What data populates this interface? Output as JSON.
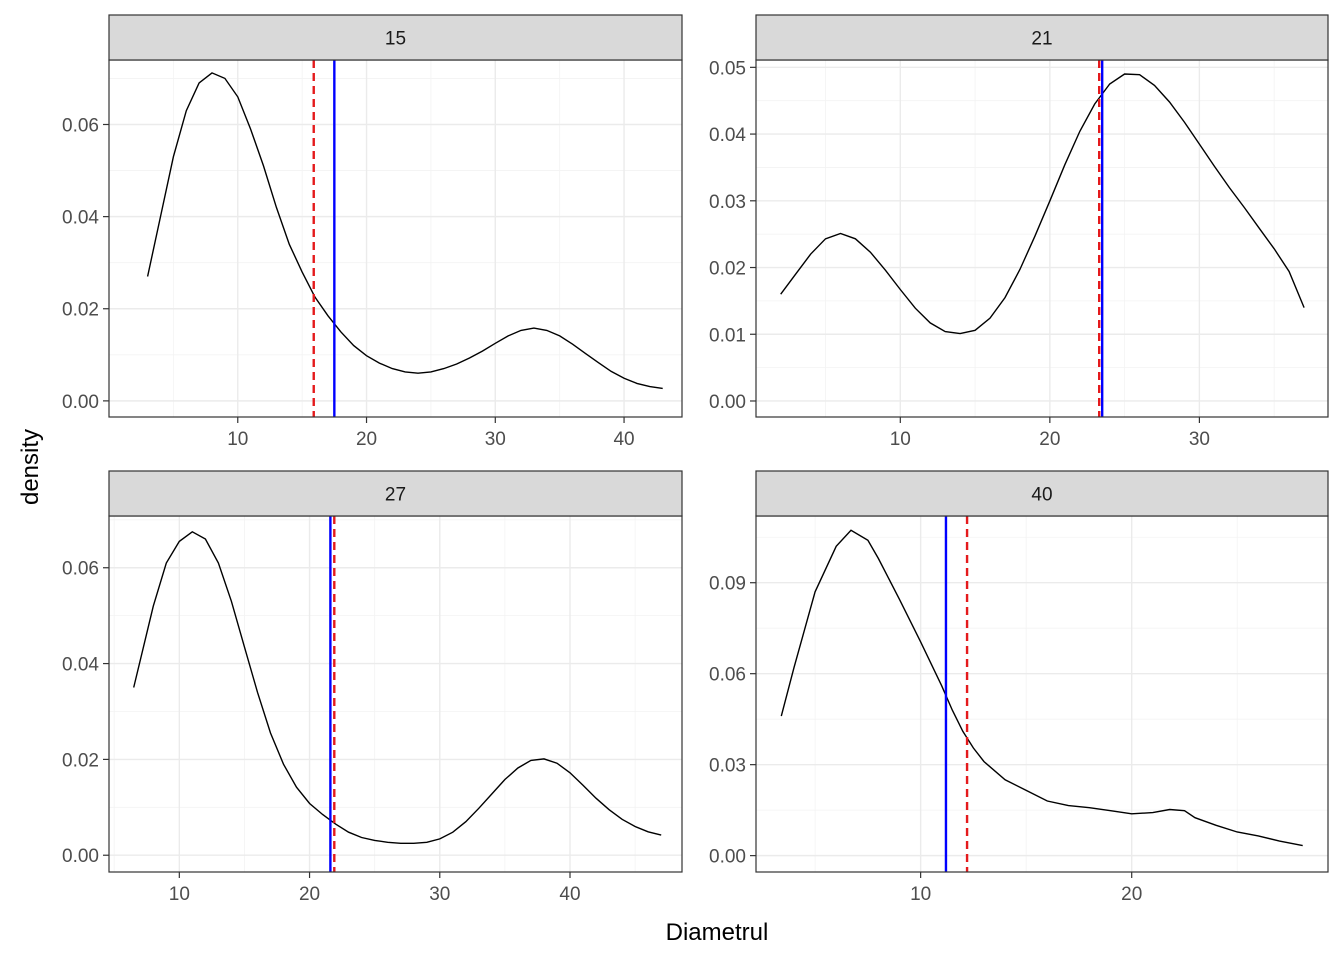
{
  "chart_data": {
    "type": "line",
    "xlabel": "Diametrul",
    "ylabel": "density",
    "colors": {
      "solid_line": "#0000ff",
      "dashed_line": "#e41a1c",
      "curve": "#000000"
    },
    "panels": [
      {
        "strip": "15",
        "xlim": [
          0,
          44.5
        ],
        "ylim": [
          -0.0035,
          0.074
        ],
        "xticks": [
          10,
          20,
          30,
          40
        ],
        "xtick_labels": [
          "10",
          "20",
          "30",
          "40"
        ],
        "yticks": [
          0,
          0.02,
          0.04,
          0.06
        ],
        "ytick_labels": [
          "0.00",
          "0.02",
          "0.04",
          "0.06"
        ],
        "vline_solid": 17.5,
        "vline_dashed": 15.9,
        "curve": {
          "x": [
            3,
            4,
            5,
            6,
            7,
            8,
            9,
            10,
            11,
            12,
            13,
            14,
            15,
            16,
            17,
            18,
            19,
            20,
            21,
            22,
            23,
            24,
            25,
            26,
            27,
            28,
            29,
            30,
            31,
            32,
            33,
            34,
            35,
            36,
            37,
            38,
            39,
            40,
            41,
            42,
            43
          ],
          "y": [
            0.027,
            0.04,
            0.053,
            0.063,
            0.069,
            0.0712,
            0.07,
            0.066,
            0.059,
            0.051,
            0.042,
            0.034,
            0.028,
            0.0225,
            0.0185,
            0.015,
            0.012,
            0.0098,
            0.0082,
            0.007,
            0.0063,
            0.006,
            0.0063,
            0.007,
            0.008,
            0.0093,
            0.0108,
            0.0125,
            0.0141,
            0.0153,
            0.0158,
            0.0153,
            0.0141,
            0.0123,
            0.0103,
            0.0083,
            0.0064,
            0.0049,
            0.0038,
            0.0031,
            0.0027
          ]
        }
      },
      {
        "strip": "21",
        "xlim": [
          0.35,
          38.6
        ],
        "ylim": [
          -0.0024,
          0.0511
        ],
        "xticks": [
          10,
          20,
          30
        ],
        "xtick_labels": [
          "10",
          "20",
          "30"
        ],
        "yticks": [
          0,
          0.01,
          0.02,
          0.03,
          0.04,
          0.05
        ],
        "ytick_labels": [
          "0.00",
          "0.01",
          "0.02",
          "0.03",
          "0.04",
          "0.05"
        ],
        "vline_solid": 23.5,
        "vline_dashed": 23.3,
        "curve": {
          "x": [
            2,
            3,
            4,
            5,
            6,
            7,
            8,
            9,
            10,
            11,
            12,
            13,
            14,
            15,
            16,
            17,
            18,
            19,
            20,
            21,
            22,
            23,
            24,
            25,
            26,
            27,
            28,
            29,
            30,
            31,
            32,
            33,
            34,
            35,
            36,
            37
          ],
          "y": [
            0.016,
            0.019,
            0.022,
            0.0243,
            0.0251,
            0.0243,
            0.0223,
            0.0196,
            0.0167,
            0.0139,
            0.0117,
            0.0104,
            0.0101,
            0.0106,
            0.0124,
            0.0155,
            0.0197,
            0.0247,
            0.03,
            0.0354,
            0.0404,
            0.0445,
            0.0475,
            0.049,
            0.0489,
            0.0473,
            0.0448,
            0.0418,
            0.0385,
            0.0352,
            0.032,
            0.029,
            0.0259,
            0.0228,
            0.0194,
            0.014
          ]
        }
      },
      {
        "strip": "27",
        "xlim": [
          4.6,
          48.6
        ],
        "ylim": [
          -0.0035,
          0.0708
        ],
        "xticks": [
          10,
          20,
          30,
          40
        ],
        "xtick_labels": [
          "10",
          "20",
          "30",
          "40"
        ],
        "yticks": [
          0,
          0.02,
          0.04,
          0.06
        ],
        "ytick_labels": [
          "0.00",
          "0.02",
          "0.04",
          "0.06"
        ],
        "vline_solid": 21.6,
        "vline_dashed": 21.9,
        "curve": {
          "x": [
            6.5,
            8,
            9,
            10,
            11,
            12,
            13,
            14,
            15,
            16,
            17,
            18,
            19,
            20,
            21,
            22,
            23,
            24,
            25,
            26,
            27,
            28,
            29,
            30,
            31,
            32,
            33,
            34,
            35,
            36,
            37,
            38,
            39,
            40,
            41,
            42,
            43,
            44,
            45,
            46,
            47
          ],
          "y": [
            0.035,
            0.052,
            0.061,
            0.0655,
            0.0675,
            0.066,
            0.061,
            0.053,
            0.0435,
            0.034,
            0.0255,
            0.019,
            0.0142,
            0.0108,
            0.0085,
            0.0065,
            0.0048,
            0.0037,
            0.0031,
            0.0027,
            0.0025,
            0.0025,
            0.0027,
            0.0034,
            0.0048,
            0.007,
            0.0098,
            0.0128,
            0.0158,
            0.0182,
            0.0198,
            0.0201,
            0.0192,
            0.0172,
            0.0146,
            0.0119,
            0.0095,
            0.0075,
            0.006,
            0.0049,
            0.0042
          ]
        }
      },
      {
        "strip": "40",
        "xlim": [
          2.2,
          29.3
        ],
        "ylim": [
          -0.0054,
          0.112
        ],
        "xticks": [
          10,
          20
        ],
        "xtick_labels": [
          "10",
          "20"
        ],
        "yticks": [
          0,
          0.03,
          0.06,
          0.09
        ],
        "ytick_labels": [
          "0.00",
          "0.03",
          "0.06",
          "0.09"
        ],
        "vline_solid": 11.2,
        "vline_dashed": 12.2,
        "curve": {
          "x": [
            3.4,
            4,
            5,
            6,
            6.7,
            7.5,
            8,
            9,
            10,
            11,
            11.5,
            12,
            12.5,
            13,
            14,
            15,
            16,
            17,
            18,
            19,
            20,
            21,
            21.8,
            22.5,
            23,
            24,
            25,
            26,
            27,
            28.1
          ],
          "y": [
            0.046,
            0.062,
            0.087,
            0.102,
            0.1073,
            0.104,
            0.098,
            0.0845,
            0.0705,
            0.056,
            0.048,
            0.041,
            0.0355,
            0.031,
            0.025,
            0.0215,
            0.018,
            0.0165,
            0.0158,
            0.0148,
            0.0138,
            0.0142,
            0.0152,
            0.0148,
            0.0125,
            0.01,
            0.0078,
            0.0065,
            0.0048,
            0.0033
          ]
        }
      }
    ]
  }
}
